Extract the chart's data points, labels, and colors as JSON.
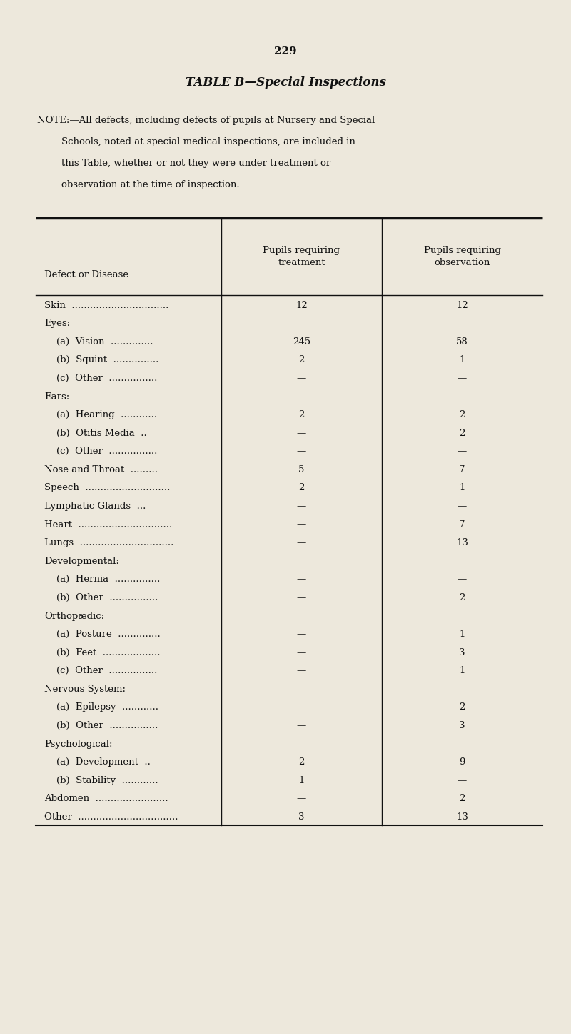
{
  "page_number": "229",
  "title": "TABLE B—Special Inspections",
  "note_lines": [
    "NOTE:—All defects, including defects of pupils at Nursery and Special",
    "        Schools, noted at special medical inspections, are included in",
    "        this Table, whether or not they were under treatment or",
    "        observation at the time of inspection."
  ],
  "col_header_left": "Defect or Disease",
  "col_header_mid": "Pupils requiring\ntreatment",
  "col_header_right": "Pupils requiring\nobservation",
  "rows": [
    {
      "label": "Skin  ................................",
      "indent": false,
      "treat": "12",
      "obs": "12"
    },
    {
      "label": "Eyes:",
      "indent": false,
      "treat": "",
      "obs": ""
    },
    {
      "label": "    (a)  Vision  ..............",
      "indent": true,
      "treat": "245",
      "obs": "58"
    },
    {
      "label": "    (b)  Squint  ...............",
      "indent": true,
      "treat": "2",
      "obs": "1"
    },
    {
      "label": "    (c)  Other  ................",
      "indent": true,
      "treat": "—",
      "obs": "—"
    },
    {
      "label": "Ears:",
      "indent": false,
      "treat": "",
      "obs": ""
    },
    {
      "label": "    (a)  Hearing  ............",
      "indent": true,
      "treat": "2",
      "obs": "2"
    },
    {
      "label": "    (b)  Otitis Media  ..",
      "indent": true,
      "treat": "—",
      "obs": "2"
    },
    {
      "label": "    (c)  Other  ................",
      "indent": true,
      "treat": "—",
      "obs": "—"
    },
    {
      "label": "Nose and Throat  .........",
      "indent": false,
      "treat": "5",
      "obs": "7"
    },
    {
      "label": "Speech  ............................",
      "indent": false,
      "treat": "2",
      "obs": "1"
    },
    {
      "label": "Lymphatic Glands  ...",
      "indent": false,
      "treat": "—",
      "obs": "—"
    },
    {
      "label": "Heart  ...............................",
      "indent": false,
      "treat": "—",
      "obs": "7"
    },
    {
      "label": "Lungs  ...............................",
      "indent": false,
      "treat": "—",
      "obs": "13"
    },
    {
      "label": "Developmental:",
      "indent": false,
      "treat": "",
      "obs": ""
    },
    {
      "label": "    (a)  Hernia  ...............",
      "indent": true,
      "treat": "—",
      "obs": "—"
    },
    {
      "label": "    (b)  Other  ................",
      "indent": true,
      "treat": "—",
      "obs": "2"
    },
    {
      "label": "Orthopædic:",
      "indent": false,
      "treat": "",
      "obs": ""
    },
    {
      "label": "    (a)  Posture  ..............",
      "indent": true,
      "treat": "—",
      "obs": "1"
    },
    {
      "label": "    (b)  Feet  ...................",
      "indent": true,
      "treat": "—",
      "obs": "3"
    },
    {
      "label": "    (c)  Other  ................",
      "indent": true,
      "treat": "—",
      "obs": "1"
    },
    {
      "label": "Nervous System:",
      "indent": false,
      "treat": "",
      "obs": ""
    },
    {
      "label": "    (a)  Epilepsy  ............",
      "indent": true,
      "treat": "—",
      "obs": "2"
    },
    {
      "label": "    (b)  Other  ................",
      "indent": true,
      "treat": "—",
      "obs": "3"
    },
    {
      "label": "Psychological:",
      "indent": false,
      "treat": "",
      "obs": ""
    },
    {
      "label": "    (a)  Development  ..",
      "indent": true,
      "treat": "2",
      "obs": "9"
    },
    {
      "label": "    (b)  Stability  ............",
      "indent": true,
      "treat": "1",
      "obs": "—"
    },
    {
      "label": "Abdomen  ........................",
      "indent": false,
      "treat": "—",
      "obs": "2"
    },
    {
      "label": "Other  .................................",
      "indent": false,
      "treat": "3",
      "obs": "13"
    }
  ],
  "bg_color": "#ede8dc",
  "text_color": "#111111",
  "line_color": "#111111",
  "fig_width": 8.0,
  "fig_height": 14.47,
  "dpi": 100
}
